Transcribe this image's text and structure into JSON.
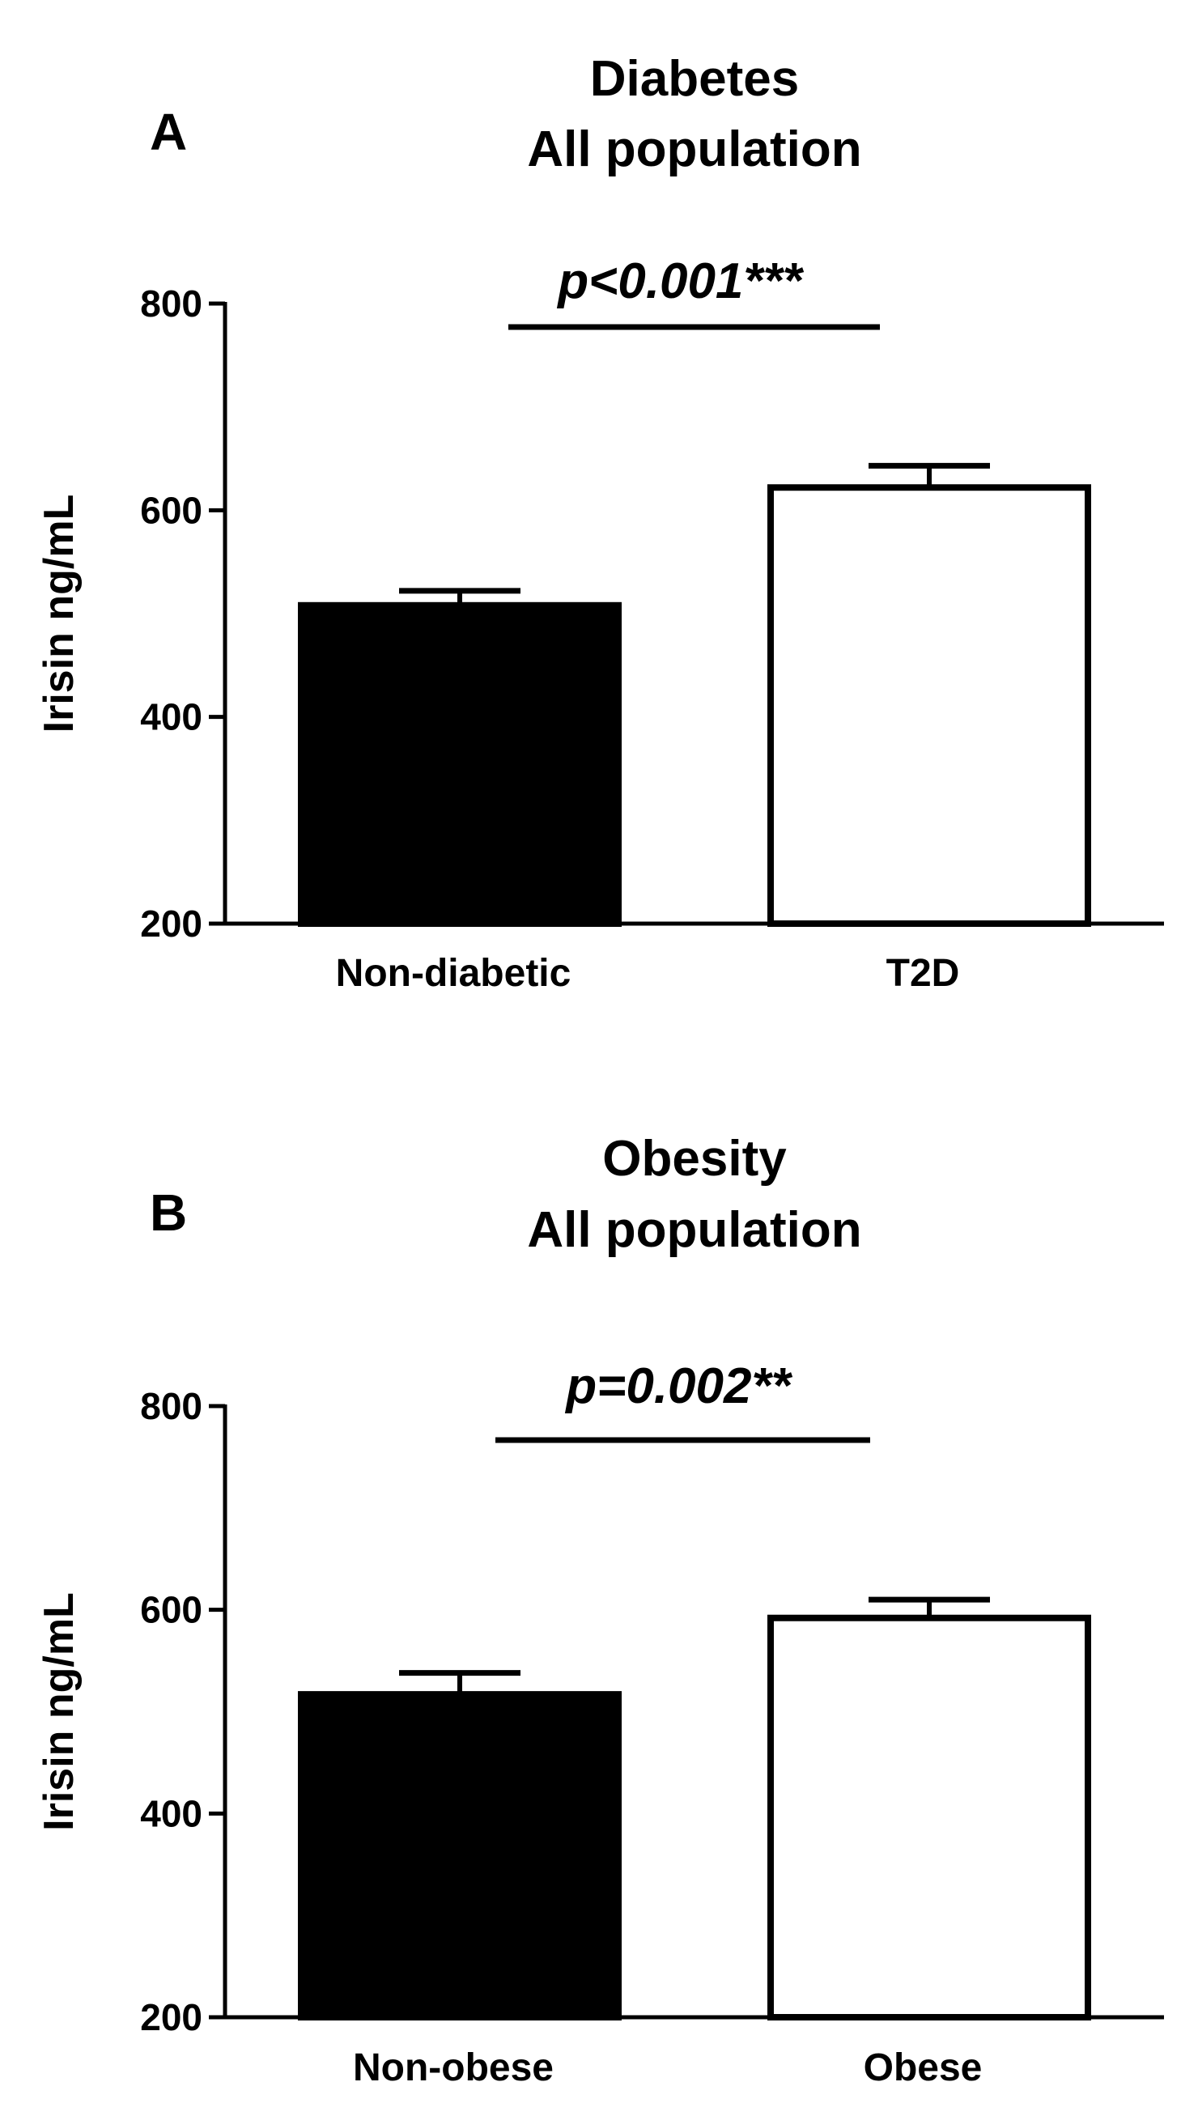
{
  "chart_data": [
    {
      "type": "bar",
      "panel": "A",
      "title": [
        "Diabetes",
        "All population"
      ],
      "xlabel": "",
      "ylabel": "Irisin ng/mL",
      "ylim": [
        200,
        800
      ],
      "yticks": [
        200,
        400,
        600,
        800
      ],
      "categories": [
        "Non-diabetic",
        "T2D"
      ],
      "values": [
        508,
        622
      ],
      "errors": [
        14,
        21
      ],
      "bar_colors": [
        "#000000",
        "#ffffff"
      ],
      "significance": {
        "label": "p<0.001***",
        "between": [
          "Non-diabetic",
          "T2D"
        ]
      }
    },
    {
      "type": "bar",
      "panel": "B",
      "title": [
        "Obesity",
        "All population"
      ],
      "xlabel": "",
      "ylabel": "Irisin ng/mL",
      "ylim": [
        200,
        800
      ],
      "yticks": [
        200,
        400,
        600,
        800
      ],
      "categories": [
        "Non-obese",
        "Obese"
      ],
      "values": [
        517,
        592
      ],
      "errors": [
        21,
        18
      ],
      "bar_colors": [
        "#000000",
        "#ffffff"
      ],
      "significance": {
        "label": "p=0.002**",
        "between": [
          "Non-obese",
          "Obese"
        ]
      }
    }
  ]
}
